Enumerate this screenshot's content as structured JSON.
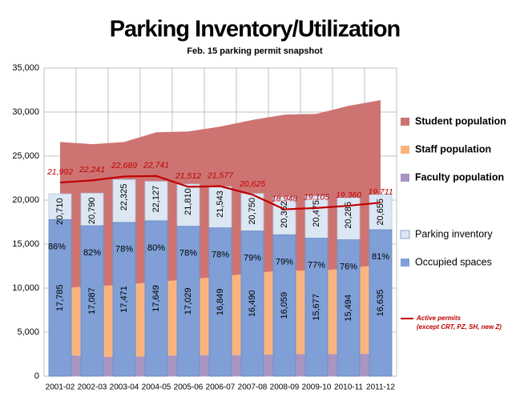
{
  "chart_data": {
    "type": "combo",
    "title": "Parking Inventory/Utilization",
    "subtitle": "Feb. 15 parking permit snapshot",
    "categories": [
      "2001-02",
      "2002-03",
      "2003-04",
      "2004-05",
      "2005-06",
      "2006-07",
      "2007-08",
      "2008-09",
      "2009-10",
      "2010-11",
      "2011-12"
    ],
    "ylim": [
      0,
      35000
    ],
    "yticks": [
      0,
      {
        "value": 5000,
        "label": "5,000"
      },
      {
        "value": 10000,
        "label": "10,000"
      },
      {
        "value": 15000,
        "label": "15,000"
      },
      {
        "value": 20000,
        "label": "20,000"
      },
      {
        "value": 25000,
        "label": "25,000"
      },
      {
        "value": 30000,
        "label": "30,000"
      },
      {
        "value": 35000,
        "label": "35,000"
      }
    ],
    "grid": true,
    "series": [
      {
        "name": "Faculty population",
        "type": "area",
        "color": "#a895c2",
        "values": [
          2500,
          2200,
          2200,
          2300,
          2400,
          2400,
          2400,
          2500,
          2500,
          2500,
          2600
        ]
      },
      {
        "name": "Staff population",
        "type": "area",
        "color": "#f9b47e",
        "values": [
          7500,
          8000,
          8200,
          8400,
          8600,
          8900,
          9300,
          9500,
          9500,
          9700,
          10100
        ]
      },
      {
        "name": "Student population",
        "type": "area",
        "color": "#cd7473",
        "values": [
          16600,
          16150,
          16200,
          17000,
          16800,
          17050,
          17400,
          17700,
          17800,
          18500,
          18650
        ]
      },
      {
        "name": "Parking inventory",
        "type": "bar",
        "color": "#dce7f4",
        "values": [
          20710,
          20790,
          22325,
          22127,
          21810,
          21543,
          20750,
          20362,
          20475,
          20285,
          20655
        ],
        "value_labels": [
          "20,710",
          "20,790",
          "22,325",
          "22,127",
          "21,810",
          "21,543",
          "20,750",
          "20,362",
          "20,475",
          "20,285",
          "20,655"
        ]
      },
      {
        "name": "Occupied spaces",
        "type": "bar",
        "color": "#7f9fd6",
        "values": [
          17785,
          17087,
          17471,
          17649,
          17029,
          16849,
          16490,
          16059,
          15677,
          15494,
          16635
        ],
        "value_labels": [
          "17,785",
          "17,087",
          "17,471",
          "17,649",
          "17,029",
          "16,849",
          "16,490",
          "16,059",
          "15,677",
          "15,494",
          "16,635"
        ]
      },
      {
        "name": "Active permits",
        "note": "(except CRT, PZ, SH, new Z)",
        "type": "line",
        "color": "#c00000",
        "values": [
          21992,
          22241,
          22689,
          22741,
          21512,
          21577,
          20625,
          18948,
          19105,
          19360,
          19711
        ],
        "value_labels": [
          "21,992",
          "22,241",
          "22,689",
          "22,741",
          "21,512",
          "21,577",
          "20,625",
          "18,948",
          "19,105",
          "19,360",
          "19,711"
        ]
      }
    ],
    "utilization": {
      "values": [
        86,
        82,
        78,
        80,
        78,
        78,
        79,
        79,
        77,
        76,
        81
      ],
      "value_labels": [
        "86%",
        "82%",
        "78%",
        "80%",
        "78%",
        "78%",
        "79%",
        "79%",
        "77%",
        "76%",
        "81%"
      ]
    }
  }
}
